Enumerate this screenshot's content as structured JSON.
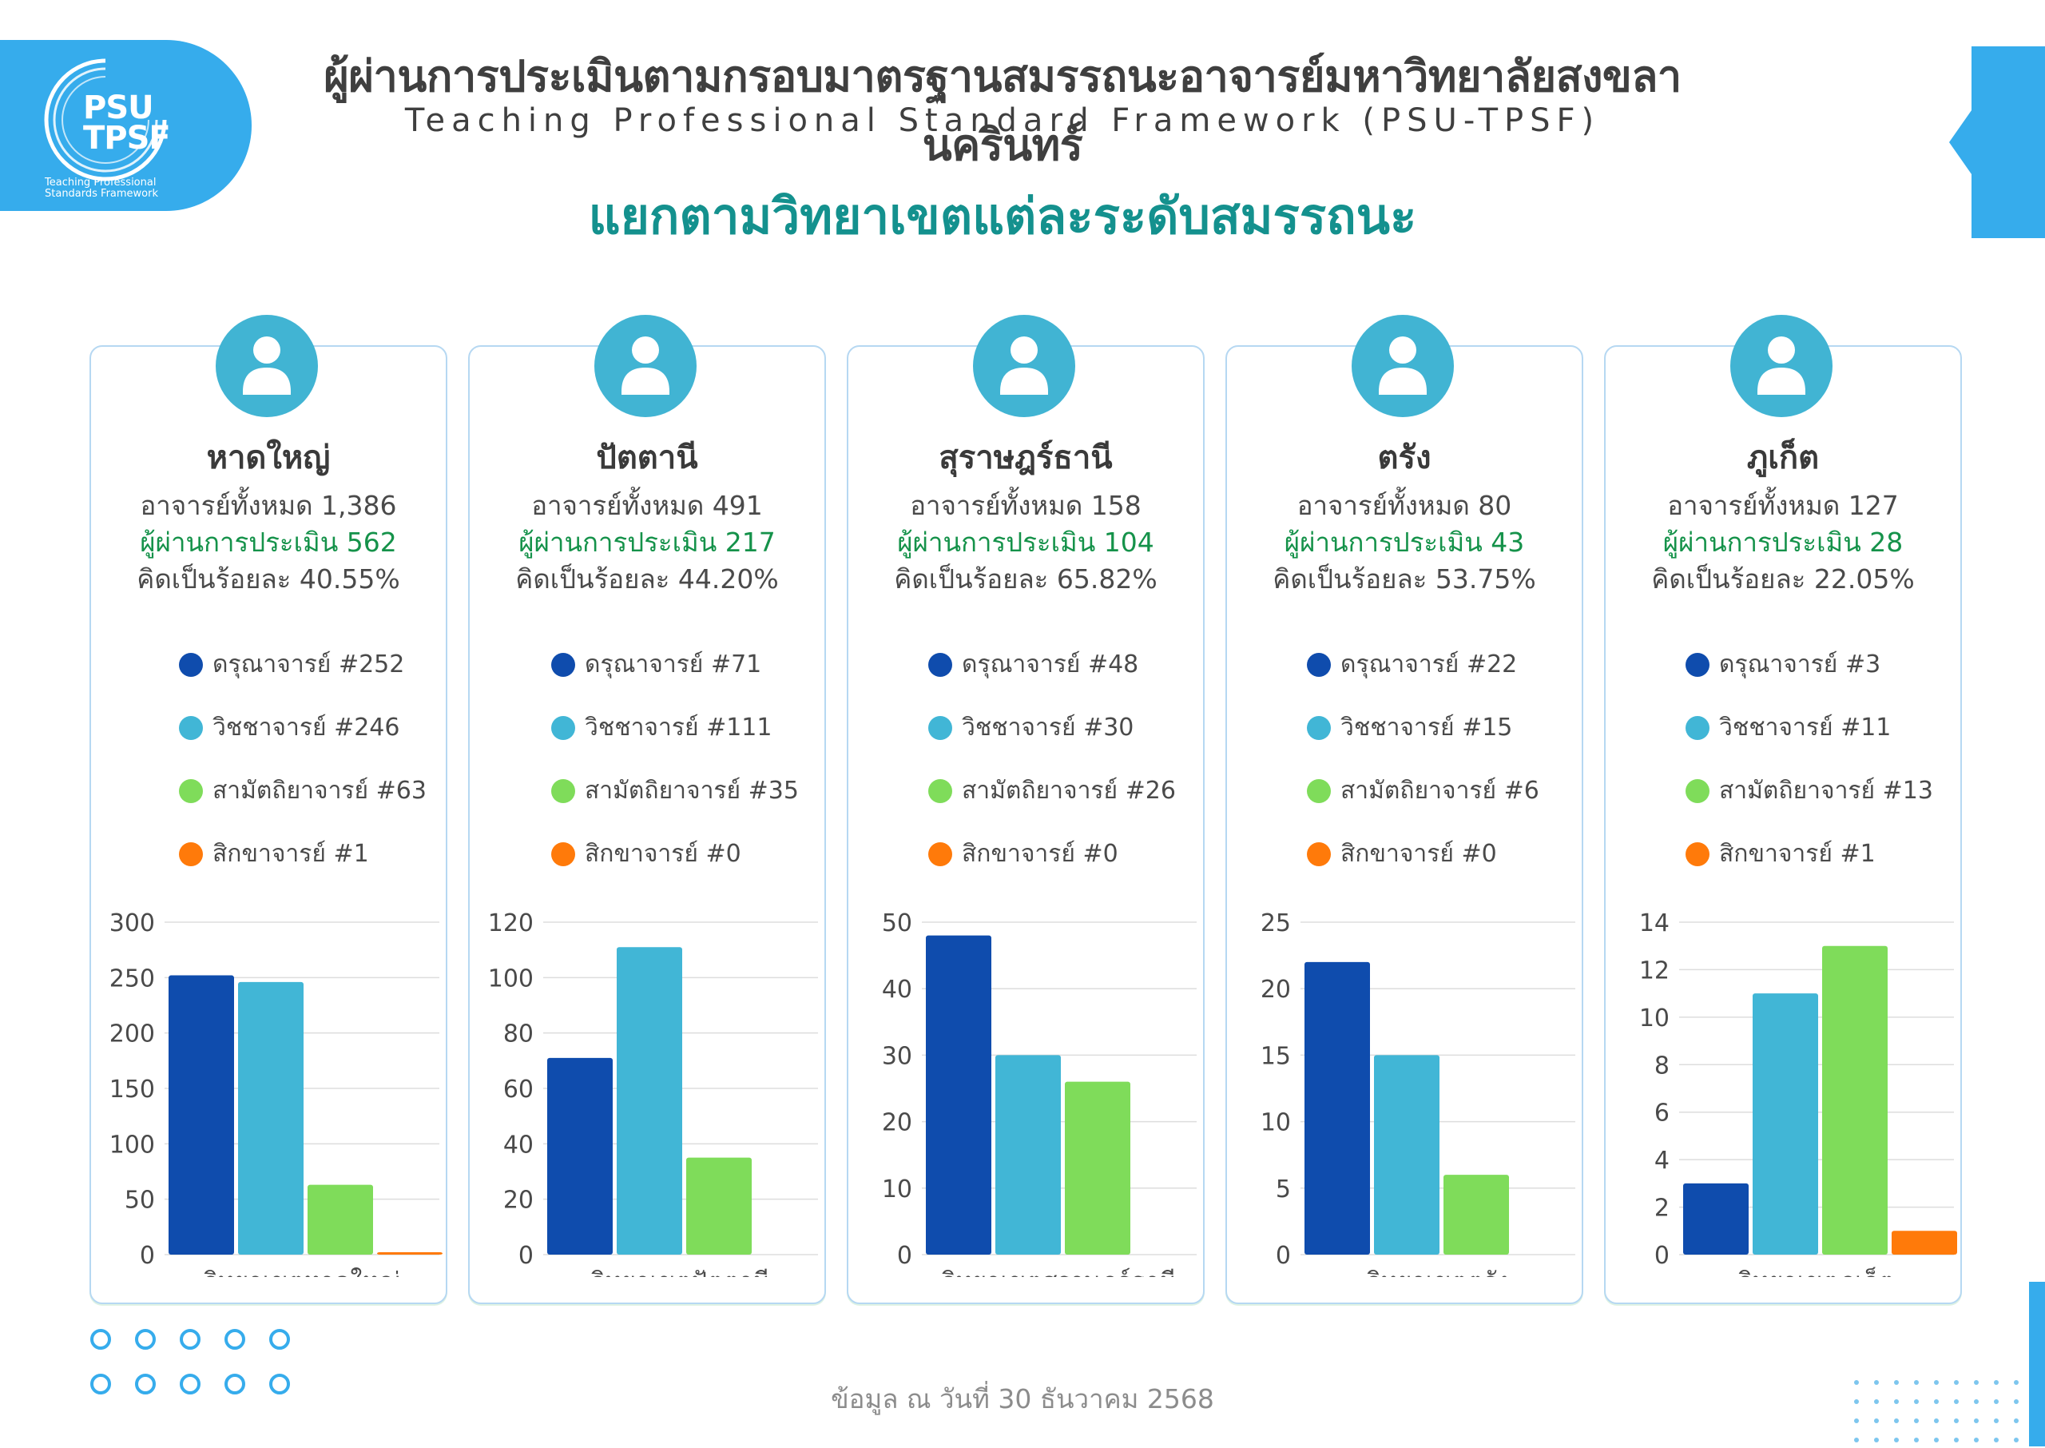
{
  "logo": {
    "text_top": "PSU",
    "text_bottom": "TPSF",
    "subtitle_line1": "Teaching Professional",
    "subtitle_line2": "Standards Framework"
  },
  "header": {
    "title": "ผู้ผ่านการประเมินตามกรอบมาตรฐานสมรรถนะอาจารย์มหาวิทยาลัยสงขลานครินทร์",
    "subtitle": "Teaching Professional Standard Framework (PSU-TPSF)",
    "section_title": "แยกตามวิทยาเขตแต่ละระดับสมรรถนะ"
  },
  "colors": {
    "level1": "#0f4cad",
    "level2": "#41b6d6",
    "level3": "#7fdc5a",
    "level4": "#ff7a0a",
    "accent": "#36acec"
  },
  "campuses": [
    {
      "name": "หาดใหญ่",
      "total_text": "อาจารย์ทั้งหมด 1,386",
      "passed_text": "ผู้ผ่านการประเมิน 562",
      "percent_text": "คิดเป็นร้อยละ 40.55%",
      "legend": [
        {
          "label": "ดรุณาจารย์",
          "count": "#252"
        },
        {
          "label": "วิชชาจารย์",
          "count": "#246"
        },
        {
          "label": "สามัตถิยาจารย์",
          "count": "#63"
        },
        {
          "label": "สิกขาจารย์",
          "count": "#1"
        }
      ]
    },
    {
      "name": "ปัตตานี",
      "total_text": "อาจารย์ทั้งหมด 491",
      "passed_text": "ผู้ผ่านการประเมิน 217",
      "percent_text": "คิดเป็นร้อยละ 44.20%",
      "legend": [
        {
          "label": "ดรุณาจารย์",
          "count": "#71"
        },
        {
          "label": "วิชชาจารย์",
          "count": "#111"
        },
        {
          "label": "สามัตถิยาจารย์",
          "count": "#35"
        },
        {
          "label": "สิกขาจารย์",
          "count": "#0"
        }
      ]
    },
    {
      "name": "สุราษฎร์ธานี",
      "total_text": "อาจารย์ทั้งหมด 158",
      "passed_text": "ผู้ผ่านการประเมิน 104",
      "percent_text": "คิดเป็นร้อยละ 65.82%",
      "legend": [
        {
          "label": "ดรุณาจารย์",
          "count": "#48"
        },
        {
          "label": "วิชชาจารย์",
          "count": "#30"
        },
        {
          "label": "สามัตถิยาจารย์",
          "count": "#26"
        },
        {
          "label": "สิกขาจารย์",
          "count": "#0"
        }
      ]
    },
    {
      "name": "ตรัง",
      "total_text": "อาจารย์ทั้งหมด 80",
      "passed_text": "ผู้ผ่านการประเมิน 43",
      "percent_text": "คิดเป็นร้อยละ 53.75%",
      "legend": [
        {
          "label": "ดรุณาจารย์",
          "count": "#22"
        },
        {
          "label": "วิชชาจารย์",
          "count": "#15"
        },
        {
          "label": "สามัตถิยาจารย์",
          "count": "#6"
        },
        {
          "label": "สิกขาจารย์",
          "count": "#0"
        }
      ]
    },
    {
      "name": "ภูเก็ต",
      "total_text": "อาจารย์ทั้งหมด 127",
      "passed_text": "ผู้ผ่านการประเมิน 28",
      "percent_text": "คิดเป็นร้อยละ 22.05%",
      "legend": [
        {
          "label": "ดรุณาจารย์",
          "count": "#3"
        },
        {
          "label": "วิชชาจารย์",
          "count": "#11"
        },
        {
          "label": "สามัตถิยาจารย์",
          "count": "#13"
        },
        {
          "label": "สิกขาจารย์",
          "count": "#1"
        }
      ]
    }
  ],
  "chart_data": [
    {
      "type": "bar",
      "categories": [
        "วิทยาเขตหาดใหญ่"
      ],
      "series": [
        {
          "name": "ดรุณาจารย์",
          "values": [
            252
          ]
        },
        {
          "name": "วิชชาจารย์",
          "values": [
            246
          ]
        },
        {
          "name": "สามัตถิยาจารย์",
          "values": [
            63
          ]
        },
        {
          "name": "สิกขาจารย์",
          "values": [
            1
          ]
        }
      ],
      "yticks": [
        0,
        50,
        100,
        150,
        200,
        250,
        300
      ],
      "ylim": [
        0,
        300
      ],
      "xlabel": "วิทยาเขตหาดใหญ่",
      "ylabel": "",
      "grid": true
    },
    {
      "type": "bar",
      "categories": [
        "วิทยาเขตปัตตานี"
      ],
      "series": [
        {
          "name": "ดรุณาจารย์",
          "values": [
            71
          ]
        },
        {
          "name": "วิชชาจารย์",
          "values": [
            111
          ]
        },
        {
          "name": "สามัตถิยาจารย์",
          "values": [
            35
          ]
        },
        {
          "name": "สิกขาจารย์",
          "values": [
            0
          ]
        }
      ],
      "yticks": [
        0,
        20,
        40,
        60,
        80,
        100,
        120
      ],
      "ylim": [
        0,
        120
      ],
      "xlabel": "วิทยาเขตปัตตานี",
      "ylabel": "",
      "grid": true
    },
    {
      "type": "bar",
      "categories": [
        "วิทยาเขตสุราษฎร์ธานี"
      ],
      "series": [
        {
          "name": "ดรุณาจารย์",
          "values": [
            48
          ]
        },
        {
          "name": "วิชชาจารย์",
          "values": [
            30
          ]
        },
        {
          "name": "สามัตถิยาจารย์",
          "values": [
            26
          ]
        },
        {
          "name": "สิกขาจารย์",
          "values": [
            0
          ]
        }
      ],
      "yticks": [
        0,
        10,
        20,
        30,
        40,
        50
      ],
      "ylim": [
        0,
        50
      ],
      "xlabel": "วิทยาเขตสุราษฎร์ธานี",
      "ylabel": "",
      "grid": true
    },
    {
      "type": "bar",
      "categories": [
        "วิทยาเขตตรัง"
      ],
      "series": [
        {
          "name": "ดรุณาจารย์",
          "values": [
            22
          ]
        },
        {
          "name": "วิชชาจารย์",
          "values": [
            15
          ]
        },
        {
          "name": "สามัตถิยาจารย์",
          "values": [
            6
          ]
        },
        {
          "name": "สิกขาจารย์",
          "values": [
            0
          ]
        }
      ],
      "yticks": [
        0,
        5,
        10,
        15,
        20,
        25
      ],
      "ylim": [
        0,
        25
      ],
      "xlabel": "วิทยาเขตตรัง",
      "ylabel": "",
      "grid": true
    },
    {
      "type": "bar",
      "categories": [
        "วิทยาเขตภูเก็ต"
      ],
      "series": [
        {
          "name": "ดรุณาจารย์",
          "values": [
            3
          ]
        },
        {
          "name": "วิชชาจารย์",
          "values": [
            11
          ]
        },
        {
          "name": "สามัตถิยาจารย์",
          "values": [
            13
          ]
        },
        {
          "name": "สิกขาจารย์",
          "values": [
            1
          ]
        }
      ],
      "yticks": [
        0,
        2,
        4,
        6,
        8,
        10,
        12,
        14
      ],
      "ylim": [
        0,
        14
      ],
      "xlabel": "วิทยาเขตภูเก็ต",
      "ylabel": "",
      "grid": true
    }
  ],
  "footer": {
    "date_text": "ข้อมูล ณ วันที่ 30 ธันวาคม 2568"
  }
}
